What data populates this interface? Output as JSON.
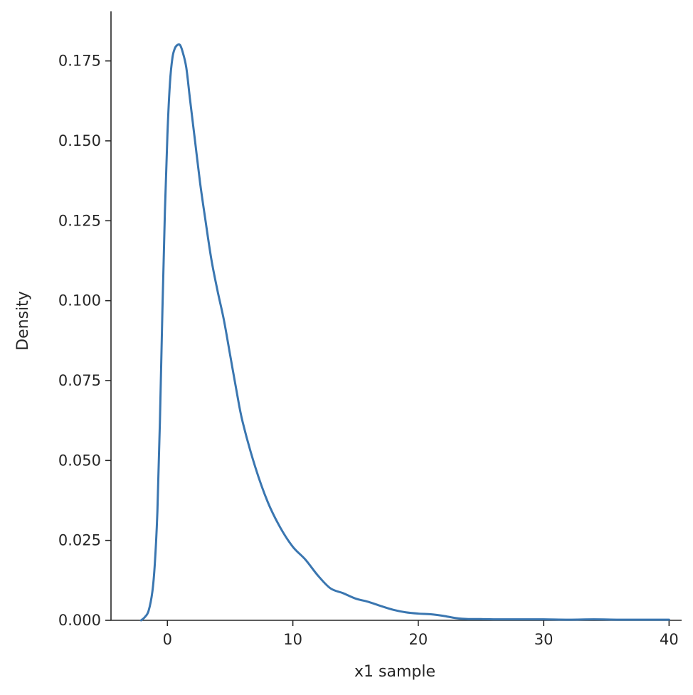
{
  "chart_data": {
    "type": "line",
    "title": "",
    "xlabel": "x1 sample",
    "ylabel": "Density",
    "xlim": [
      -4.5,
      41.0
    ],
    "ylim": [
      0.0,
      0.1905
    ],
    "xticks": [
      0,
      10,
      20,
      30,
      40
    ],
    "yticks": [
      0.0,
      0.025,
      0.05,
      0.075,
      0.1,
      0.125,
      0.15,
      0.175
    ],
    "xtick_labels": [
      "0",
      "10",
      "20",
      "30",
      "40"
    ],
    "ytick_labels": [
      "0.000",
      "0.025",
      "0.050",
      "0.075",
      "0.100",
      "0.125",
      "0.150",
      "0.175"
    ],
    "grid": false,
    "legend": "none",
    "line_color": "#3a76b0",
    "series": [
      {
        "x": [
          -2.1,
          -1.8,
          -1.5,
          -1.2,
          -1.0,
          -0.8,
          -0.6,
          -0.4,
          -0.2,
          0.0,
          0.2,
          0.4,
          0.6,
          0.8,
          1.0,
          1.2,
          1.5,
          1.8,
          2.2,
          2.6,
          3.0,
          3.5,
          4.0,
          4.5,
          5.0,
          5.5,
          6.0,
          7.0,
          8.0,
          9.0,
          10.0,
          11.0,
          12.0,
          13.0,
          14.0,
          15.0,
          16.0,
          17.0,
          18.0,
          19.0,
          20.0,
          21.0,
          22.0,
          23.0,
          24.0,
          25.0,
          26.0,
          28.0,
          30.0,
          32.0,
          34.0,
          36.0,
          38.0,
          40.0
        ],
        "y": [
          0.0,
          0.001,
          0.003,
          0.009,
          0.018,
          0.034,
          0.062,
          0.097,
          0.128,
          0.152,
          0.168,
          0.176,
          0.179,
          0.18,
          0.18,
          0.178,
          0.173,
          0.163,
          0.15,
          0.137,
          0.126,
          0.113,
          0.103,
          0.094,
          0.083,
          0.072,
          0.062,
          0.048,
          0.037,
          0.029,
          0.023,
          0.019,
          0.014,
          0.01,
          0.0085,
          0.0068,
          0.0058,
          0.0045,
          0.0033,
          0.0025,
          0.0021,
          0.0019,
          0.0014,
          0.0007,
          0.0004,
          0.0004,
          0.0003,
          0.0003,
          0.0003,
          0.0002,
          0.0003,
          0.0002,
          0.0002,
          0.0002
        ]
      }
    ]
  }
}
